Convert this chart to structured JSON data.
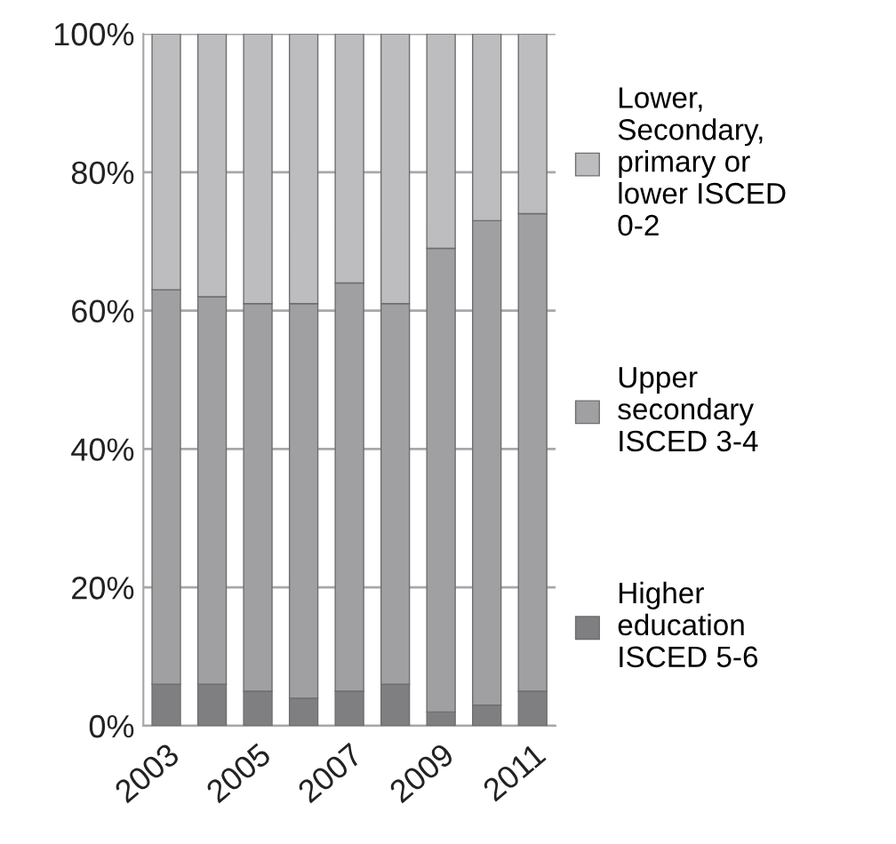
{
  "chart_data": {
    "type": "bar",
    "stacked": true,
    "categories": [
      "2003",
      null,
      "2005",
      null,
      "2007",
      null,
      "2009",
      null,
      "2011"
    ],
    "series": [
      {
        "name": "Higher education ISCED 5-6",
        "color": "#7f7f81",
        "values": [
          6,
          6,
          5,
          4,
          5,
          6,
          2,
          3,
          5
        ]
      },
      {
        "name": "Upper secondary ISCED 3-4",
        "color": "#a0a0a3",
        "values": [
          57,
          56,
          56,
          57,
          59,
          55,
          67,
          70,
          69
        ]
      },
      {
        "name": "Lower, Secondary, primary or lower ISCED 0-2",
        "color": "#bdbdc0",
        "values": [
          37,
          38,
          39,
          39,
          36,
          39,
          31,
          27,
          26
        ]
      }
    ],
    "ylim": [
      0,
      100
    ],
    "yticks": [
      {
        "value": 0,
        "label": "0%"
      },
      {
        "value": 20,
        "label": "20%"
      },
      {
        "value": 40,
        "label": "40%"
      },
      {
        "value": 60,
        "label": "60%"
      },
      {
        "value": 80,
        "label": "80%"
      },
      {
        "value": 100,
        "label": "100%"
      }
    ],
    "grid": "y",
    "legend": "right"
  }
}
